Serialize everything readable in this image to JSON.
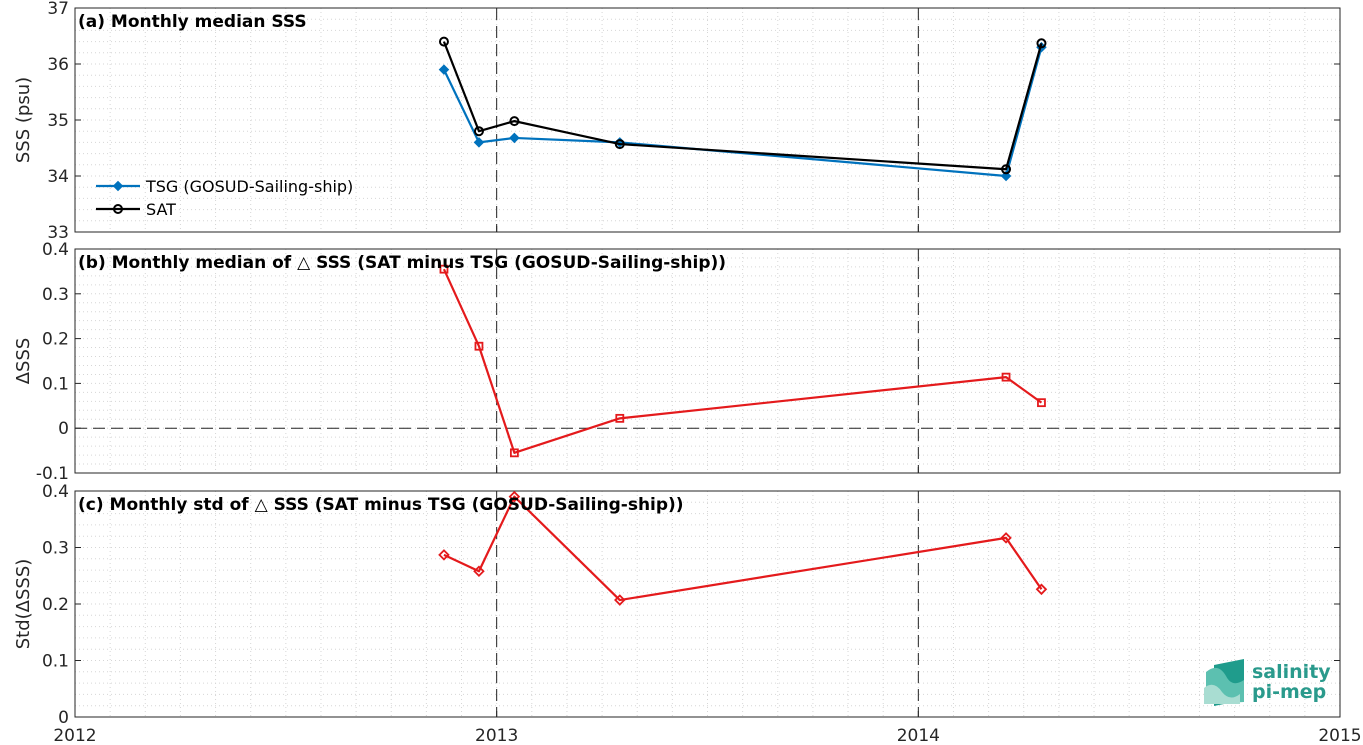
{
  "colors": {
    "tsg": "#0072bd",
    "sat": "#000000",
    "delta": "#e41a1c",
    "logo": "#2a9a8c"
  },
  "chart_data": [
    {
      "type": "line",
      "title": "(a) Monthly median SSS",
      "ylabel": "SSS (psu)",
      "xlim": [
        2012,
        2015
      ],
      "ylim": [
        33,
        37
      ],
      "yticks": [
        33,
        34,
        35,
        36,
        37
      ],
      "grid": true,
      "legend": "bottom-left",
      "series": [
        {
          "name": "TSG (GOSUD-Sailing-ship)",
          "color": "#0072bd",
          "marker": "diamond",
          "x": [
            2012.875,
            2012.958,
            2013.042,
            2013.292,
            2014.208,
            2014.292
          ],
          "y": [
            35.9,
            34.6,
            34.68,
            34.6,
            34.0,
            36.3
          ]
        },
        {
          "name": "SAT",
          "color": "#000000",
          "marker": "circle",
          "x": [
            2012.875,
            2012.958,
            2013.042,
            2013.292,
            2014.208,
            2014.292
          ],
          "y": [
            36.4,
            34.8,
            34.98,
            34.57,
            34.12,
            36.37
          ]
        }
      ]
    },
    {
      "type": "line",
      "title": "(b) Monthly median of △ SSS (SAT minus TSG (GOSUD-Sailing-ship))",
      "ylabel": "ΔSSS",
      "xlim": [
        2012,
        2015
      ],
      "ylim": [
        -0.1,
        0.4
      ],
      "yticks": [
        -0.1,
        0,
        0.1,
        0.2,
        0.3,
        0.4
      ],
      "grid": true,
      "zero_line": true,
      "series": [
        {
          "color": "#e41a1c",
          "marker": "square",
          "x": [
            2012.875,
            2012.958,
            2013.042,
            2013.292,
            2014.208,
            2014.292
          ],
          "y": [
            0.355,
            0.183,
            -0.055,
            0.022,
            0.114,
            0.057
          ]
        }
      ]
    },
    {
      "type": "line",
      "title": "(c) Monthly std of △ SSS (SAT minus TSG (GOSUD-Sailing-ship))",
      "ylabel": "Std(ΔSSS)",
      "xlabel": "",
      "xlim": [
        2012,
        2015
      ],
      "ylim": [
        0,
        0.4
      ],
      "yticks": [
        0,
        0.1,
        0.2,
        0.3,
        0.4
      ],
      "xticks": [
        2012,
        2013,
        2014,
        2015
      ],
      "grid": true,
      "series": [
        {
          "color": "#e41a1c",
          "marker": "diamond",
          "x": [
            2012.875,
            2012.958,
            2013.042,
            2013.292,
            2014.208,
            2014.292
          ],
          "y": [
            0.287,
            0.258,
            0.39,
            0.207,
            0.317,
            0.226
          ]
        }
      ]
    }
  ],
  "logo": {
    "line1": "salinity",
    "line2": "pi-mep"
  }
}
